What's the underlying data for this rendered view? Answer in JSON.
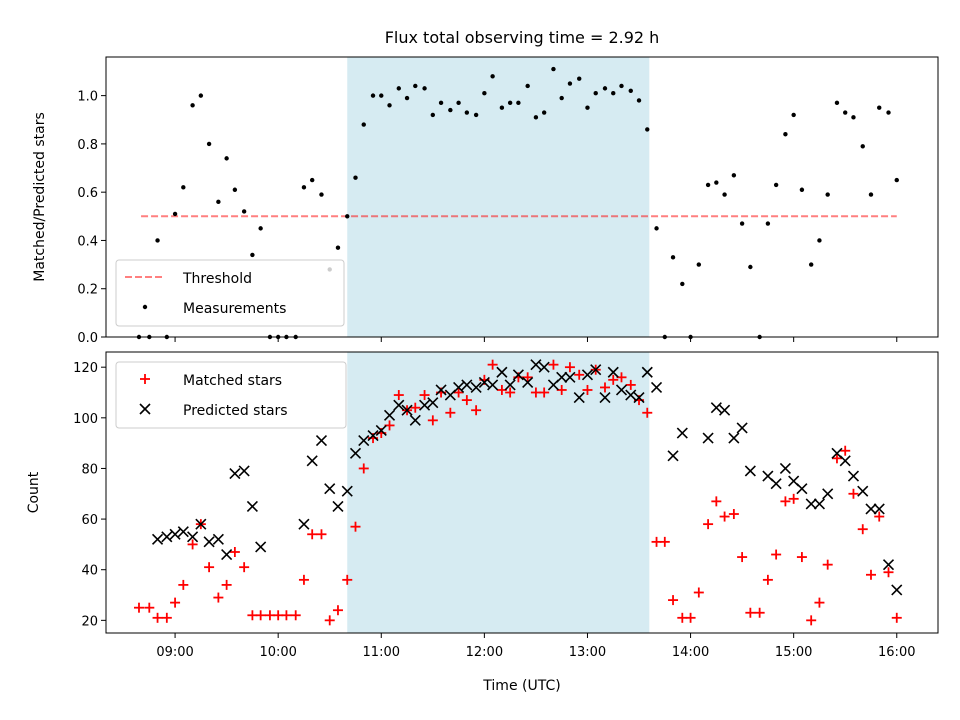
{
  "title": "Flux total observing time = 2.92 h",
  "colors": {
    "observing_band": "#add8e6",
    "threshold": "#ff0000",
    "measurements": "#000000",
    "matched": "#ff0000",
    "predicted": "#000000"
  },
  "chart_data": [
    {
      "type": "scatter",
      "ylabel": "Matched/Predicted stars",
      "xlim": [
        8.33,
        16.4
      ],
      "ylim": [
        0,
        1.16
      ],
      "yticks": [
        "0.0",
        "0.2",
        "0.4",
        "0.6",
        "0.8",
        "1.0"
      ],
      "grid": false,
      "legend": "lower-left",
      "shaded_interval": [
        10.67,
        13.6
      ],
      "threshold": {
        "name": "Threshold",
        "value": 0.5,
        "x_range": [
          8.67,
          16.0
        ]
      },
      "series": [
        {
          "name": "Measurements",
          "points": [
            [
              8.65,
              0.0
            ],
            [
              8.75,
              0.0
            ],
            [
              8.83,
              0.4
            ],
            [
              8.92,
              0.0
            ],
            [
              9.0,
              0.51
            ],
            [
              9.08,
              0.62
            ],
            [
              9.17,
              0.96
            ],
            [
              9.25,
              1.0
            ],
            [
              9.33,
              0.8
            ],
            [
              9.42,
              0.56
            ],
            [
              9.5,
              0.74
            ],
            [
              9.58,
              0.61
            ],
            [
              9.67,
              0.52
            ],
            [
              9.75,
              0.34
            ],
            [
              9.83,
              0.45
            ],
            [
              9.92,
              0.0
            ],
            [
              10.0,
              0.0
            ],
            [
              10.08,
              0.0
            ],
            [
              10.17,
              0.0
            ],
            [
              10.25,
              0.62
            ],
            [
              10.33,
              0.65
            ],
            [
              10.42,
              0.59
            ],
            [
              10.5,
              0.28
            ],
            [
              10.58,
              0.37
            ],
            [
              10.67,
              0.5
            ],
            [
              10.75,
              0.66
            ],
            [
              10.83,
              0.88
            ],
            [
              10.92,
              1.0
            ],
            [
              11.0,
              1.0
            ],
            [
              11.08,
              0.96
            ],
            [
              11.17,
              1.03
            ],
            [
              11.25,
              0.99
            ],
            [
              11.33,
              1.04
            ],
            [
              11.42,
              1.03
            ],
            [
              11.5,
              0.92
            ],
            [
              11.58,
              0.97
            ],
            [
              11.67,
              0.94
            ],
            [
              11.75,
              0.97
            ],
            [
              11.83,
              0.93
            ],
            [
              11.92,
              0.92
            ],
            [
              12.0,
              1.01
            ],
            [
              12.08,
              1.08
            ],
            [
              12.17,
              0.95
            ],
            [
              12.25,
              0.97
            ],
            [
              12.33,
              0.97
            ],
            [
              12.42,
              1.04
            ],
            [
              12.5,
              0.91
            ],
            [
              12.58,
              0.93
            ],
            [
              12.67,
              1.11
            ],
            [
              12.75,
              0.99
            ],
            [
              12.83,
              1.05
            ],
            [
              12.92,
              1.07
            ],
            [
              13.0,
              0.95
            ],
            [
              13.08,
              1.01
            ],
            [
              13.17,
              1.03
            ],
            [
              13.25,
              1.01
            ],
            [
              13.33,
              1.04
            ],
            [
              13.42,
              1.02
            ],
            [
              13.5,
              0.98
            ],
            [
              13.58,
              0.86
            ],
            [
              13.67,
              0.45
            ],
            [
              13.75,
              0.0
            ],
            [
              13.83,
              0.33
            ],
            [
              13.92,
              0.22
            ],
            [
              14.0,
              0.0
            ],
            [
              14.08,
              0.3
            ],
            [
              14.17,
              0.63
            ],
            [
              14.25,
              0.64
            ],
            [
              14.33,
              0.59
            ],
            [
              14.42,
              0.67
            ],
            [
              14.5,
              0.47
            ],
            [
              14.58,
              0.29
            ],
            [
              14.67,
              0.0
            ],
            [
              14.75,
              0.47
            ],
            [
              14.83,
              0.63
            ],
            [
              14.92,
              0.84
            ],
            [
              15.0,
              0.92
            ],
            [
              15.08,
              0.61
            ],
            [
              15.17,
              0.3
            ],
            [
              15.25,
              0.4
            ],
            [
              15.33,
              0.59
            ],
            [
              15.42,
              0.97
            ],
            [
              15.5,
              0.93
            ],
            [
              15.58,
              0.91
            ],
            [
              15.67,
              0.79
            ],
            [
              15.75,
              0.59
            ],
            [
              15.83,
              0.95
            ],
            [
              15.92,
              0.93
            ],
            [
              16.0,
              0.65
            ]
          ]
        }
      ]
    },
    {
      "type": "scatter",
      "xlabel": "Time (UTC)",
      "ylabel": "Count",
      "xlim": [
        8.33,
        16.4
      ],
      "ylim": [
        15,
        126
      ],
      "xticks": [
        {
          "v": 9,
          "label": "09:00"
        },
        {
          "v": 10,
          "label": "10:00"
        },
        {
          "v": 11,
          "label": "11:00"
        },
        {
          "v": 12,
          "label": "12:00"
        },
        {
          "v": 13,
          "label": "13:00"
        },
        {
          "v": 14,
          "label": "14:00"
        },
        {
          "v": 15,
          "label": "15:00"
        },
        {
          "v": 16,
          "label": "16:00"
        }
      ],
      "yticks": [
        "20",
        "40",
        "60",
        "80",
        "100",
        "120"
      ],
      "grid": false,
      "legend": "top-left",
      "shaded_interval": [
        10.67,
        13.6
      ],
      "series": [
        {
          "name": "Matched stars",
          "points": [
            [
              8.65,
              25
            ],
            [
              8.75,
              25
            ],
            [
              8.83,
              21
            ],
            [
              8.92,
              21
            ],
            [
              9.0,
              27
            ],
            [
              9.08,
              34
            ],
            [
              9.17,
              50
            ],
            [
              9.25,
              58
            ],
            [
              9.33,
              41
            ],
            [
              9.42,
              29
            ],
            [
              9.5,
              34
            ],
            [
              9.58,
              47
            ],
            [
              9.67,
              41
            ],
            [
              9.75,
              22
            ],
            [
              9.83,
              22
            ],
            [
              9.92,
              22
            ],
            [
              10.0,
              22
            ],
            [
              10.08,
              22
            ],
            [
              10.17,
              22
            ],
            [
              10.25,
              36
            ],
            [
              10.33,
              54
            ],
            [
              10.42,
              54
            ],
            [
              10.5,
              20
            ],
            [
              10.58,
              24
            ],
            [
              10.67,
              36
            ],
            [
              10.75,
              57
            ],
            [
              10.83,
              80
            ],
            [
              10.92,
              92
            ],
            [
              11.0,
              94
            ],
            [
              11.08,
              97
            ],
            [
              11.17,
              109
            ],
            [
              11.25,
              103
            ],
            [
              11.33,
              104
            ],
            [
              11.42,
              109
            ],
            [
              11.5,
              99
            ],
            [
              11.58,
              110
            ],
            [
              11.67,
              102
            ],
            [
              11.75,
              110
            ],
            [
              11.83,
              107
            ],
            [
              11.92,
              103
            ],
            [
              12.0,
              115
            ],
            [
              12.08,
              121
            ],
            [
              12.17,
              111
            ],
            [
              12.25,
              110
            ],
            [
              12.33,
              116
            ],
            [
              12.42,
              116
            ],
            [
              12.5,
              110
            ],
            [
              12.58,
              110
            ],
            [
              12.67,
              121
            ],
            [
              12.75,
              111
            ],
            [
              12.83,
              120
            ],
            [
              12.92,
              117
            ],
            [
              13.0,
              111
            ],
            [
              13.08,
              119
            ],
            [
              13.17,
              112
            ],
            [
              13.25,
              115
            ],
            [
              13.33,
              116
            ],
            [
              13.42,
              113
            ],
            [
              13.5,
              107
            ],
            [
              13.58,
              102
            ],
            [
              13.67,
              51
            ],
            [
              13.75,
              51
            ],
            [
              13.83,
              28
            ],
            [
              13.92,
              21
            ],
            [
              14.0,
              21
            ],
            [
              14.08,
              31
            ],
            [
              14.17,
              58
            ],
            [
              14.25,
              67
            ],
            [
              14.33,
              61
            ],
            [
              14.42,
              62
            ],
            [
              14.5,
              45
            ],
            [
              14.58,
              23
            ],
            [
              14.67,
              23
            ],
            [
              14.75,
              36
            ],
            [
              14.83,
              46
            ],
            [
              14.92,
              67
            ],
            [
              15.0,
              68
            ],
            [
              15.08,
              45
            ],
            [
              15.17,
              20
            ],
            [
              15.25,
              27
            ],
            [
              15.33,
              42
            ],
            [
              15.42,
              84
            ],
            [
              15.5,
              87
            ],
            [
              15.58,
              70
            ],
            [
              15.67,
              56
            ],
            [
              15.75,
              38
            ],
            [
              15.83,
              61
            ],
            [
              15.92,
              39
            ],
            [
              16.0,
              21
            ]
          ]
        },
        {
          "name": "Predicted stars",
          "points": [
            [
              8.83,
              52
            ],
            [
              8.92,
              53
            ],
            [
              9.0,
              54
            ],
            [
              9.08,
              55
            ],
            [
              9.17,
              53
            ],
            [
              9.25,
              58
            ],
            [
              9.33,
              51
            ],
            [
              9.42,
              52
            ],
            [
              9.5,
              46
            ],
            [
              9.58,
              78
            ],
            [
              9.67,
              79
            ],
            [
              9.75,
              65
            ],
            [
              9.83,
              49
            ],
            [
              10.25,
              58
            ],
            [
              10.33,
              83
            ],
            [
              10.42,
              91
            ],
            [
              10.5,
              72
            ],
            [
              10.58,
              65
            ],
            [
              10.67,
              71
            ],
            [
              10.75,
              86
            ],
            [
              10.83,
              91
            ],
            [
              10.92,
              93
            ],
            [
              11.0,
              95
            ],
            [
              11.08,
              101
            ],
            [
              11.17,
              105
            ],
            [
              11.25,
              103
            ],
            [
              11.33,
              99
            ],
            [
              11.42,
              105
            ],
            [
              11.5,
              106
            ],
            [
              11.58,
              111
            ],
            [
              11.67,
              109
            ],
            [
              11.75,
              112
            ],
            [
              11.83,
              113
            ],
            [
              11.92,
              112
            ],
            [
              12.0,
              114
            ],
            [
              12.08,
              113
            ],
            [
              12.17,
              118
            ],
            [
              12.25,
              113
            ],
            [
              12.33,
              117
            ],
            [
              12.42,
              114
            ],
            [
              12.5,
              121
            ],
            [
              12.58,
              120
            ],
            [
              12.67,
              113
            ],
            [
              12.75,
              116
            ],
            [
              12.83,
              116
            ],
            [
              12.92,
              108
            ],
            [
              13.0,
              117
            ],
            [
              13.08,
              119
            ],
            [
              13.17,
              108
            ],
            [
              13.25,
              118
            ],
            [
              13.33,
              111
            ],
            [
              13.42,
              109
            ],
            [
              13.5,
              108
            ],
            [
              13.58,
              118
            ],
            [
              13.67,
              112
            ],
            [
              13.83,
              85
            ],
            [
              13.92,
              94
            ],
            [
              14.17,
              92
            ],
            [
              14.25,
              104
            ],
            [
              14.33,
              103
            ],
            [
              14.42,
              92
            ],
            [
              14.5,
              96
            ],
            [
              14.58,
              79
            ],
            [
              14.75,
              77
            ],
            [
              14.83,
              74
            ],
            [
              14.92,
              80
            ],
            [
              15.0,
              75
            ],
            [
              15.08,
              72
            ],
            [
              15.17,
              66
            ],
            [
              15.25,
              66
            ],
            [
              15.33,
              70
            ],
            [
              15.42,
              86
            ],
            [
              15.5,
              83
            ],
            [
              15.58,
              77
            ],
            [
              15.67,
              71
            ],
            [
              15.75,
              64
            ],
            [
              15.83,
              64
            ],
            [
              15.92,
              42
            ],
            [
              16.0,
              32
            ]
          ]
        }
      ]
    }
  ]
}
